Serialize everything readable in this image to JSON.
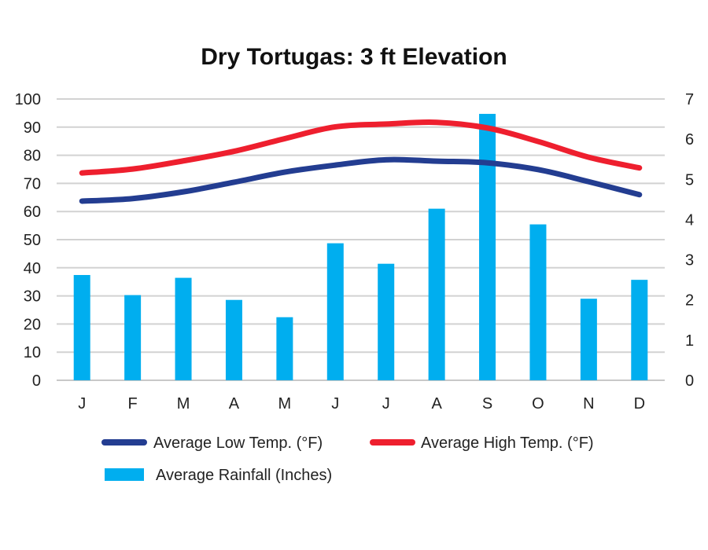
{
  "chart_data": {
    "type": "bar+line",
    "title": "Dry Tortugas: 3 ft Elevation",
    "categories": [
      "J",
      "F",
      "M",
      "A",
      "M",
      "J",
      "J",
      "A",
      "S",
      "O",
      "N",
      "D"
    ],
    "left_axis": {
      "min": 0,
      "max": 100,
      "step": 10,
      "ticks": [
        "0",
        "10",
        "20",
        "30",
        "40",
        "50",
        "60",
        "70",
        "80",
        "90",
        "100"
      ]
    },
    "right_axis": {
      "min": 0,
      "max": 7,
      "step": 1,
      "ticks": [
        "0",
        "1",
        "2",
        "3",
        "4",
        "5",
        "6",
        "7"
      ]
    },
    "grid": true,
    "series": [
      {
        "name": "Average Low Temp. (°F)",
        "type": "line",
        "axis": "left",
        "color": "#233d91",
        "values": [
          63.7,
          64.6,
          67.0,
          70.4,
          74.0,
          76.5,
          78.4,
          77.9,
          77.3,
          74.9,
          70.6,
          66.0
        ]
      },
      {
        "name": "Average High Temp. (°F)",
        "type": "line",
        "axis": "left",
        "color": "#ee1f2e",
        "values": [
          73.7,
          75.1,
          78.0,
          81.4,
          85.9,
          90.1,
          91.1,
          91.7,
          89.7,
          84.9,
          79.3,
          75.5
        ]
      },
      {
        "name": "Average Rainfall (Inches)",
        "type": "bar",
        "axis": "right",
        "color": "#00aeef",
        "values": [
          2.62,
          2.12,
          2.55,
          2.0,
          1.57,
          3.41,
          2.9,
          4.27,
          6.63,
          3.88,
          2.03,
          2.5
        ]
      }
    ],
    "legend": {
      "position": "bottom",
      "items": [
        "Average Low Temp. (°F)",
        "Average High Temp. (°F)",
        "Average Rainfall (Inches)"
      ]
    }
  }
}
